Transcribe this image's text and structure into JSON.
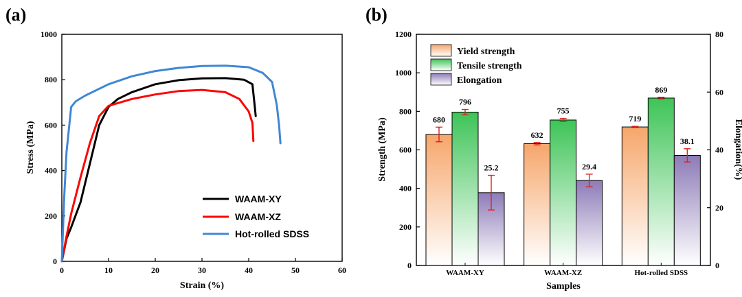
{
  "panel_a": {
    "label": "(a)",
    "legend_items": [
      "WAAM-XY",
      "WAAM-XZ",
      "Hot-rolled SDSS"
    ]
  },
  "panel_b": {
    "label": "(b)",
    "legend_items": [
      "Yield strength",
      "Tensile strength",
      "Elongation"
    ]
  },
  "chart_data": [
    {
      "type": "line",
      "xlabel": "Strain (%)",
      "ylabel": "Stress (MPa)",
      "xlim": [
        0,
        60
      ],
      "ylim": [
        0,
        1000
      ],
      "xticks": [
        "0",
        "10",
        "20",
        "30",
        "40",
        "50",
        "60"
      ],
      "yticks": [
        "0",
        "200",
        "400",
        "600",
        "800",
        "1000"
      ],
      "legend_position": "bottom-right",
      "series": [
        {
          "name": "WAAM-XY",
          "color": "#000000",
          "x": [
            0,
            1,
            2,
            4,
            6,
            8,
            10,
            12,
            15,
            20,
            25,
            30,
            35,
            39,
            40.8,
            41.2,
            41.5
          ],
          "y": [
            0,
            100,
            150,
            260,
            430,
            600,
            680,
            715,
            745,
            780,
            798,
            806,
            807,
            800,
            780,
            700,
            640
          ]
        },
        {
          "name": "WAAM-XZ",
          "color": "#ff0000",
          "x": [
            0,
            1,
            2,
            4,
            6,
            8,
            10,
            15,
            20,
            25,
            30,
            35,
            38,
            40,
            40.8,
            41
          ],
          "y": [
            0,
            110,
            210,
            370,
            520,
            640,
            685,
            715,
            735,
            750,
            755,
            745,
            715,
            660,
            610,
            530
          ]
        },
        {
          "name": "Hot-rolled SDSS",
          "color": "#3f87d6",
          "x": [
            0,
            0.5,
            1,
            2,
            3,
            5,
            10,
            15,
            20,
            25,
            30,
            35,
            40,
            43,
            45,
            46,
            46.5,
            46.8
          ],
          "y": [
            0,
            280,
            480,
            680,
            705,
            730,
            780,
            815,
            838,
            852,
            860,
            862,
            855,
            830,
            790,
            690,
            600,
            520
          ]
        }
      ]
    },
    {
      "type": "bar",
      "xlabel": "Samples",
      "ylabel": "Strength (MPa)",
      "y2label": "Elongation(%)",
      "categories": [
        "WAAM-XY",
        "WAAM-XZ",
        "Hot-rolled SDSS"
      ],
      "ylim": [
        0,
        1200
      ],
      "y2lim": [
        0,
        80
      ],
      "yticks": [
        "0",
        "200",
        "400",
        "600",
        "800",
        "1000",
        "1200"
      ],
      "y2ticks": [
        "0",
        "20",
        "40",
        "60",
        "80"
      ],
      "legend_position": "top-left",
      "series": [
        {
          "name": "Yield strength",
          "axis": "left",
          "color": "#f6a66b",
          "values": [
            680,
            632,
            719
          ],
          "labels": [
            "680",
            "632",
            "719"
          ],
          "errors": [
            38,
            6,
            3
          ]
        },
        {
          "name": "Tensile strength",
          "axis": "left",
          "color": "#3ec457",
          "values": [
            796,
            755,
            869
          ],
          "labels": [
            "796",
            "755",
            "869"
          ],
          "errors": [
            14,
            8,
            4
          ]
        },
        {
          "name": "Elongation",
          "axis": "right",
          "color": "#8d7bb8",
          "values": [
            25.2,
            29.4,
            38.1
          ],
          "labels": [
            "25.2",
            "29.4",
            "38.1"
          ],
          "errors": [
            6.0,
            2.2,
            2.3
          ]
        }
      ]
    }
  ]
}
